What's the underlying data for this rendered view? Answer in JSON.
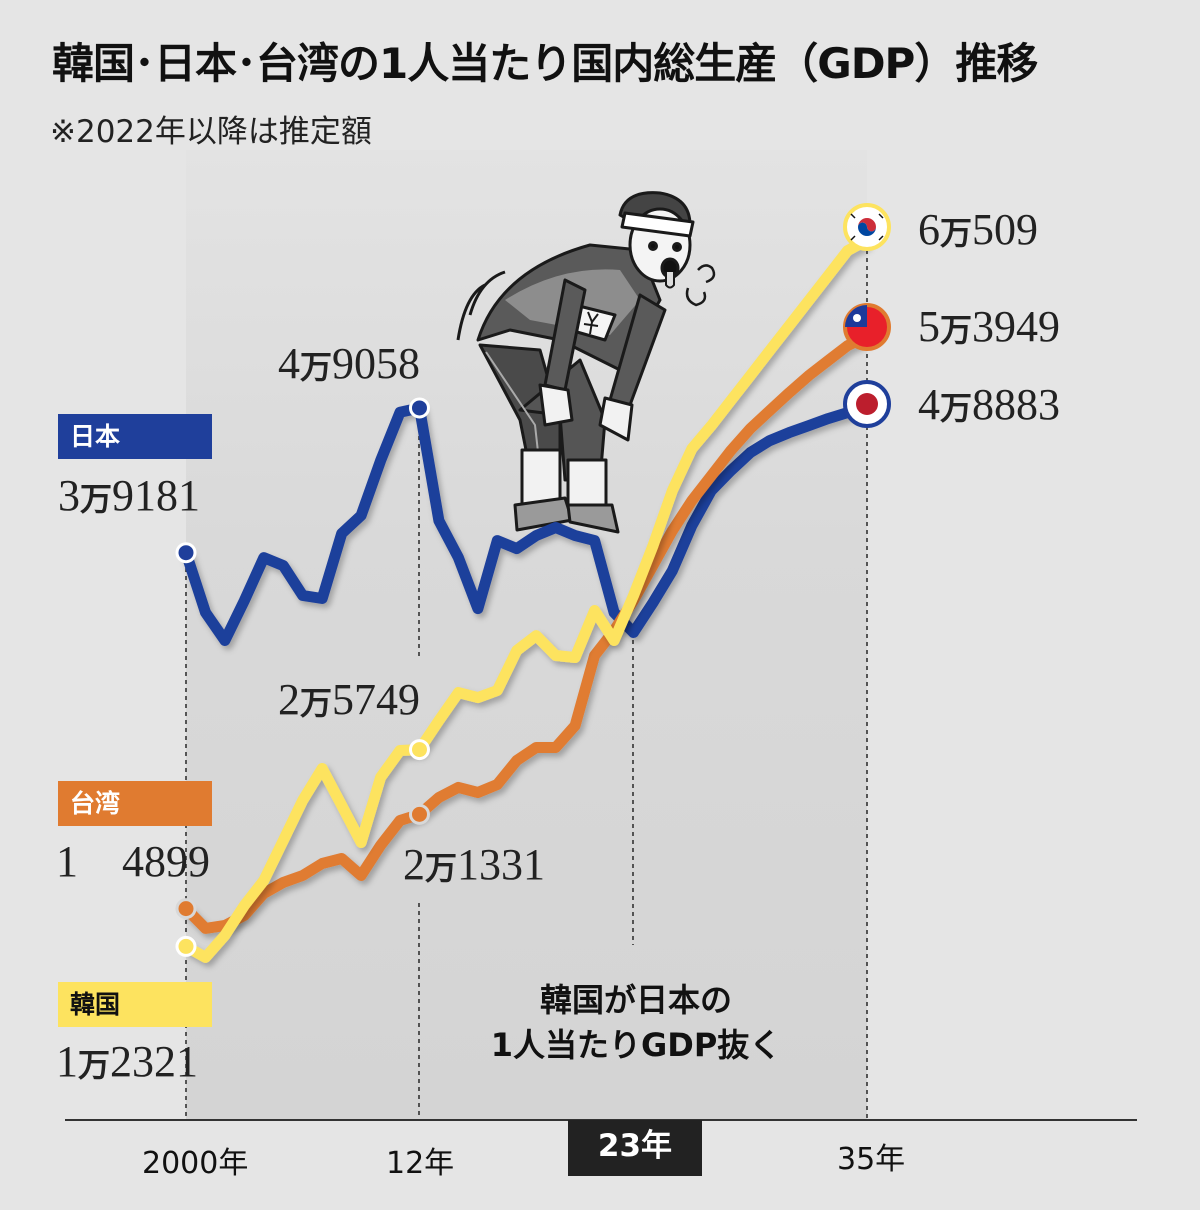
{
  "title": "韓国･日本･台湾の1人当たり国内総生産（GDP）推移",
  "subtitle": "※2022年以降は推定額",
  "legend": {
    "japan": {
      "label": "日本",
      "start_value": "3万9181",
      "color": "#1f3f9b"
    },
    "taiwan": {
      "label": "台湾",
      "start_value": "1　4899",
      "color": "#e07b30"
    },
    "korea": {
      "label": "韓国",
      "start_value": "1万2321",
      "color": "#fde35f"
    }
  },
  "annotations": {
    "japan_2012": "4万9058",
    "korea_2012": "2万5749",
    "taiwan_2012": "2万1331",
    "korea_2035": "6万509",
    "taiwan_2035": "5万3949",
    "japan_2035": "4万8883",
    "callout_line1": "韓国が日本の",
    "callout_line2": "1人当たりGDP抜く"
  },
  "flags": {
    "korea": "korea-flag-icon",
    "taiwan": "taiwan-flag-icon",
    "japan": "japan-flag-icon"
  },
  "chart_data": {
    "type": "line",
    "title": "韓国･日本･台湾の1人当たり国内総生産（GDP）推移",
    "note": "※2022年以降は推定額",
    "x_tick_labels": [
      "2000年",
      "12年",
      "23年",
      "35年"
    ],
    "x_ticks": [
      2000,
      2012,
      2023,
      2035
    ],
    "highlighted_tick": 2023,
    "xlim": [
      2000,
      2035
    ],
    "ylim": [
      0,
      67000
    ],
    "grid": false,
    "x": [
      2000,
      2001,
      2002,
      2003,
      2004,
      2005,
      2006,
      2007,
      2008,
      2009,
      2010,
      2011,
      2012,
      2013,
      2014,
      2015,
      2016,
      2017,
      2018,
      2019,
      2020,
      2021,
      2022,
      2023,
      2024,
      2025,
      2026,
      2027,
      2028,
      2029,
      2030,
      2031,
      2032,
      2033,
      2034,
      2035
    ],
    "series": [
      {
        "name": "日本",
        "color": "#1f3f9b",
        "values": [
          39181,
          35100,
          33190,
          35920,
          38850,
          38300,
          36260,
          36060,
          40490,
          41720,
          45470,
          48760,
          49058,
          41370,
          38850,
          35370,
          40010,
          39460,
          40350,
          40900,
          40350,
          40010,
          35100,
          33740,
          35780,
          37960,
          41030,
          43420,
          44780,
          46010,
          46830,
          47380,
          47850,
          48330,
          48740,
          48883
        ]
      },
      {
        "name": "台湾",
        "color": "#e07b30",
        "values": [
          14899,
          13550,
          13750,
          14440,
          15940,
          16690,
          17160,
          17980,
          18320,
          17160,
          19210,
          20910,
          21331,
          22480,
          23170,
          22820,
          23370,
          25010,
          25890,
          25890,
          27390,
          32170,
          33870,
          35920,
          38310,
          40690,
          42740,
          44440,
          46150,
          47650,
          48880,
          50100,
          51260,
          52290,
          53310,
          53949
        ]
      },
      {
        "name": "韓国",
        "color": "#fde35f",
        "values": [
          12321,
          11570,
          13070,
          15120,
          16820,
          19550,
          22280,
          24460,
          21940,
          19410,
          23850,
          25690,
          25749,
          27730,
          29640,
          29300,
          29780,
          32510,
          33530,
          32170,
          32030,
          35240,
          33190,
          36260,
          39670,
          43420,
          46280,
          47850,
          49560,
          51260,
          52970,
          54670,
          56380,
          58080,
          59790,
          60509
        ]
      }
    ]
  }
}
